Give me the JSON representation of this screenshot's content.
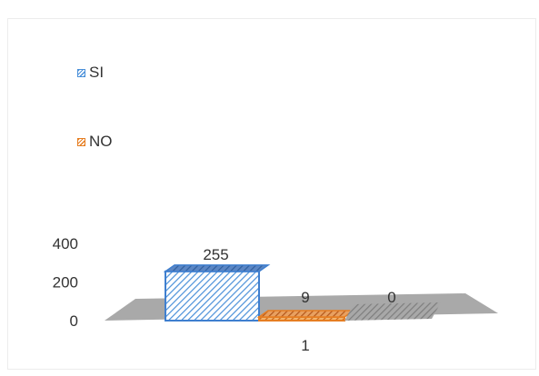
{
  "chart_data": {
    "type": "bar",
    "categories": [
      "1"
    ],
    "series": [
      {
        "name": "SI",
        "values": [
          255
        ],
        "color": "#4a90d9"
      },
      {
        "name": "NO",
        "values": [
          9
        ],
        "color": "#e67e22"
      },
      {
        "name": "",
        "values": [
          0
        ],
        "color": "#8c8c8c"
      }
    ],
    "yticks": [
      "400",
      "200",
      "0"
    ],
    "ylim": [
      0,
      400
    ],
    "legend_position": "top-left",
    "grid": false
  }
}
